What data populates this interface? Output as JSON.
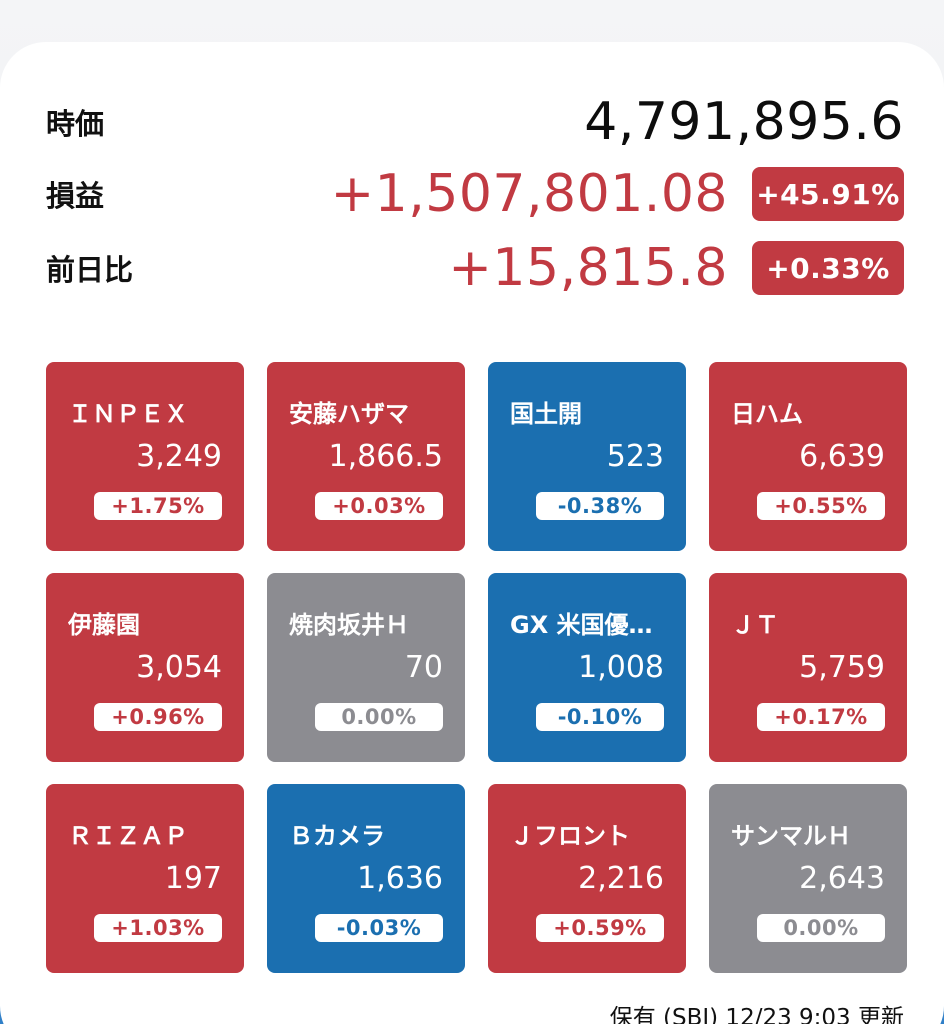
{
  "summary": {
    "market_value": {
      "label": "時価",
      "value": "4,791,895.6"
    },
    "profit_loss": {
      "label": "損益",
      "value": "+1,507,801.08",
      "percent": "+45.91%"
    },
    "day_change": {
      "label": "前日比",
      "value": "+15,815.8",
      "percent": "+0.33%"
    }
  },
  "holdings": [
    {
      "name": "ＩＮＰＥＸ",
      "price": "3,249",
      "change": "+1.75%",
      "trend": "up"
    },
    {
      "name": "安藤ハザマ",
      "price": "1,866.5",
      "change": "+0.03%",
      "trend": "up"
    },
    {
      "name": "国土開",
      "price": "523",
      "change": "-0.38%",
      "trend": "down"
    },
    {
      "name": "日ハム",
      "price": "6,639",
      "change": "+0.55%",
      "trend": "up"
    },
    {
      "name": "伊藤園",
      "price": "3,054",
      "change": "+0.96%",
      "trend": "up"
    },
    {
      "name": "焼肉坂井Ｈ",
      "price": "70",
      "change": "0.00%",
      "trend": "flat"
    },
    {
      "name": "GX 米国優…",
      "price": "1,008",
      "change": "-0.10%",
      "trend": "down"
    },
    {
      "name": "ＪＴ",
      "price": "5,759",
      "change": "+0.17%",
      "trend": "up"
    },
    {
      "name": "ＲＩＺＡＰ",
      "price": "197",
      "change": "+1.03%",
      "trend": "up"
    },
    {
      "name": "Ｂカメラ",
      "price": "1,636",
      "change": "-0.03%",
      "trend": "down"
    },
    {
      "name": "Ｊフロント",
      "price": "2,216",
      "change": "+0.59%",
      "trend": "up"
    },
    {
      "name": "サンマルＨ",
      "price": "2,643",
      "change": "0.00%",
      "trend": "flat"
    }
  ],
  "footer": "保有 (SBI) 12/23 9:03 更新",
  "colors": {
    "up": "#c13a42",
    "down": "#1b6fb0",
    "flat": "#8c8c91"
  }
}
